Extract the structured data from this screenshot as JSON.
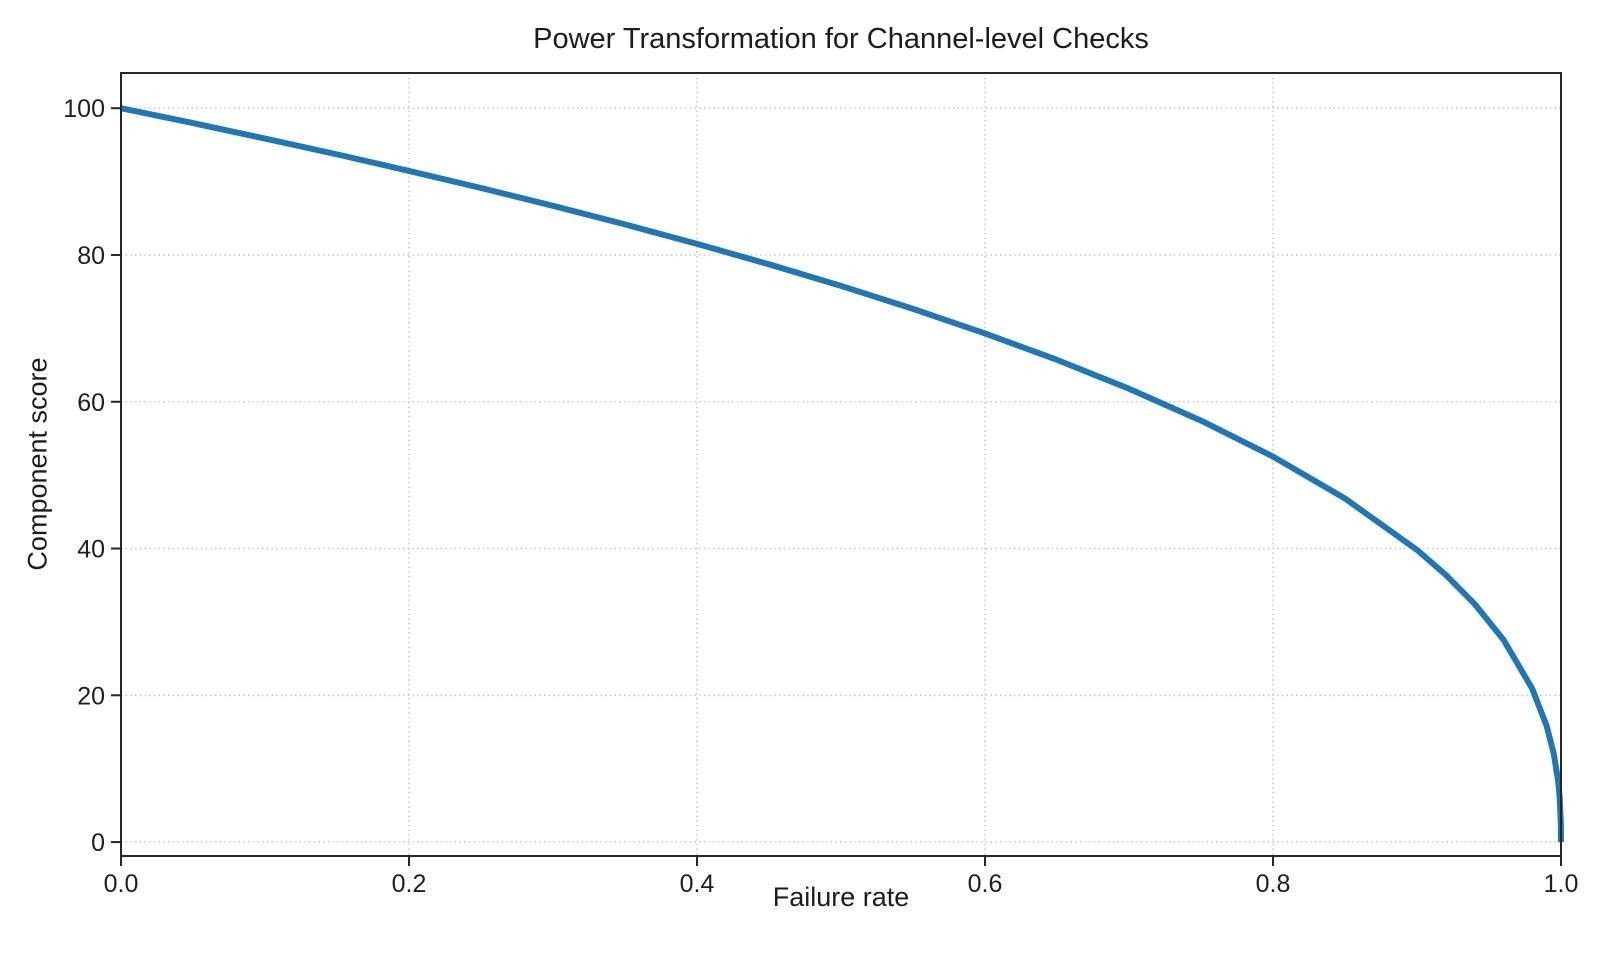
{
  "chart_data": {
    "type": "line",
    "title": "Power Transformation for Channel-level Checks",
    "xlabel": "Failure rate",
    "ylabel": "Component score",
    "xlim": [
      0.0,
      1.0
    ],
    "ylim": [
      -1.9,
      104.8
    ],
    "xticks": [
      0.0,
      0.2,
      0.4,
      0.6,
      0.8,
      1.0
    ],
    "xtick_labels": [
      "0.0",
      "0.2",
      "0.4",
      "0.6",
      "0.8",
      "1.0"
    ],
    "yticks": [
      0,
      20,
      40,
      60,
      80,
      100
    ],
    "ytick_labels": [
      "0",
      "20",
      "40",
      "60",
      "80",
      "100"
    ],
    "grid": {
      "visible": true,
      "style": "dotted",
      "color": "#c9c9c9"
    },
    "legend": "none",
    "colors": {
      "line": "#2077b4",
      "spine": "#262626",
      "text": "#1f1f1f",
      "background": "#ffffff"
    },
    "series": [
      {
        "name": "component-score-curve",
        "color": "#2077b4",
        "line_width": 6,
        "x": [
          0.0,
          0.05,
          0.1,
          0.15,
          0.2,
          0.25,
          0.3,
          0.35,
          0.4,
          0.45,
          0.5,
          0.55,
          0.6,
          0.65,
          0.7,
          0.75,
          0.8,
          0.85,
          0.9,
          0.92,
          0.94,
          0.96,
          0.98,
          0.99,
          0.995,
          0.998,
          0.999,
          0.9999,
          1.0
        ],
        "y": [
          100.0,
          97.97,
          95.87,
          93.71,
          91.46,
          89.13,
          86.7,
          84.17,
          81.52,
          78.73,
          75.79,
          72.66,
          69.31,
          65.71,
          61.78,
          57.43,
          52.53,
          46.82,
          39.81,
          36.41,
          32.45,
          27.59,
          20.91,
          15.85,
          12.01,
          8.33,
          6.31,
          2.51,
          0.0
        ]
      }
    ]
  }
}
